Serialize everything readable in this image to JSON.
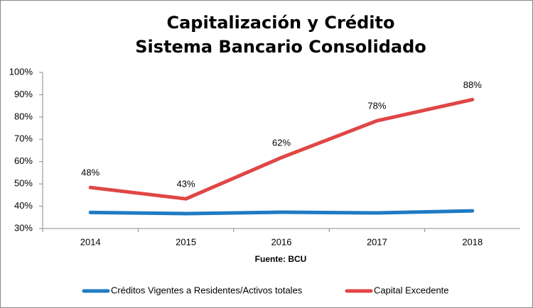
{
  "chart_data": {
    "type": "line",
    "title": "Capitalización y Crédito",
    "subtitle": "Sistema Bancario Consolidado",
    "annotation": "Fuente: BCU",
    "categories": [
      "2014",
      "2015",
      "2016",
      "2017",
      "2018"
    ],
    "series": [
      {
        "name": "Créditos Vigentes a Residentes/Activos totales",
        "color": "#1f7bc4",
        "values": [
          37.2,
          36.7,
          37.3,
          37.0,
          37.9
        ]
      },
      {
        "name": "Capital Excedente",
        "color": "#e04646",
        "values": [
          48.4,
          43.3,
          61.8,
          78.3,
          87.8
        ],
        "value_labels": [
          "48%",
          "43%",
          "62%",
          "78%",
          "88%"
        ]
      }
    ],
    "ylim": [
      30,
      100
    ],
    "yticks": [
      {
        "value": 30,
        "label": "30%"
      },
      {
        "value": 40,
        "label": "40%"
      },
      {
        "value": 50,
        "label": "50%"
      },
      {
        "value": 60,
        "label": "60%"
      },
      {
        "value": 70,
        "label": "70%"
      },
      {
        "value": 80,
        "label": "80%"
      },
      {
        "value": 90,
        "label": "90%"
      },
      {
        "value": 100,
        "label": "100%"
      }
    ],
    "legend": "bottom"
  }
}
